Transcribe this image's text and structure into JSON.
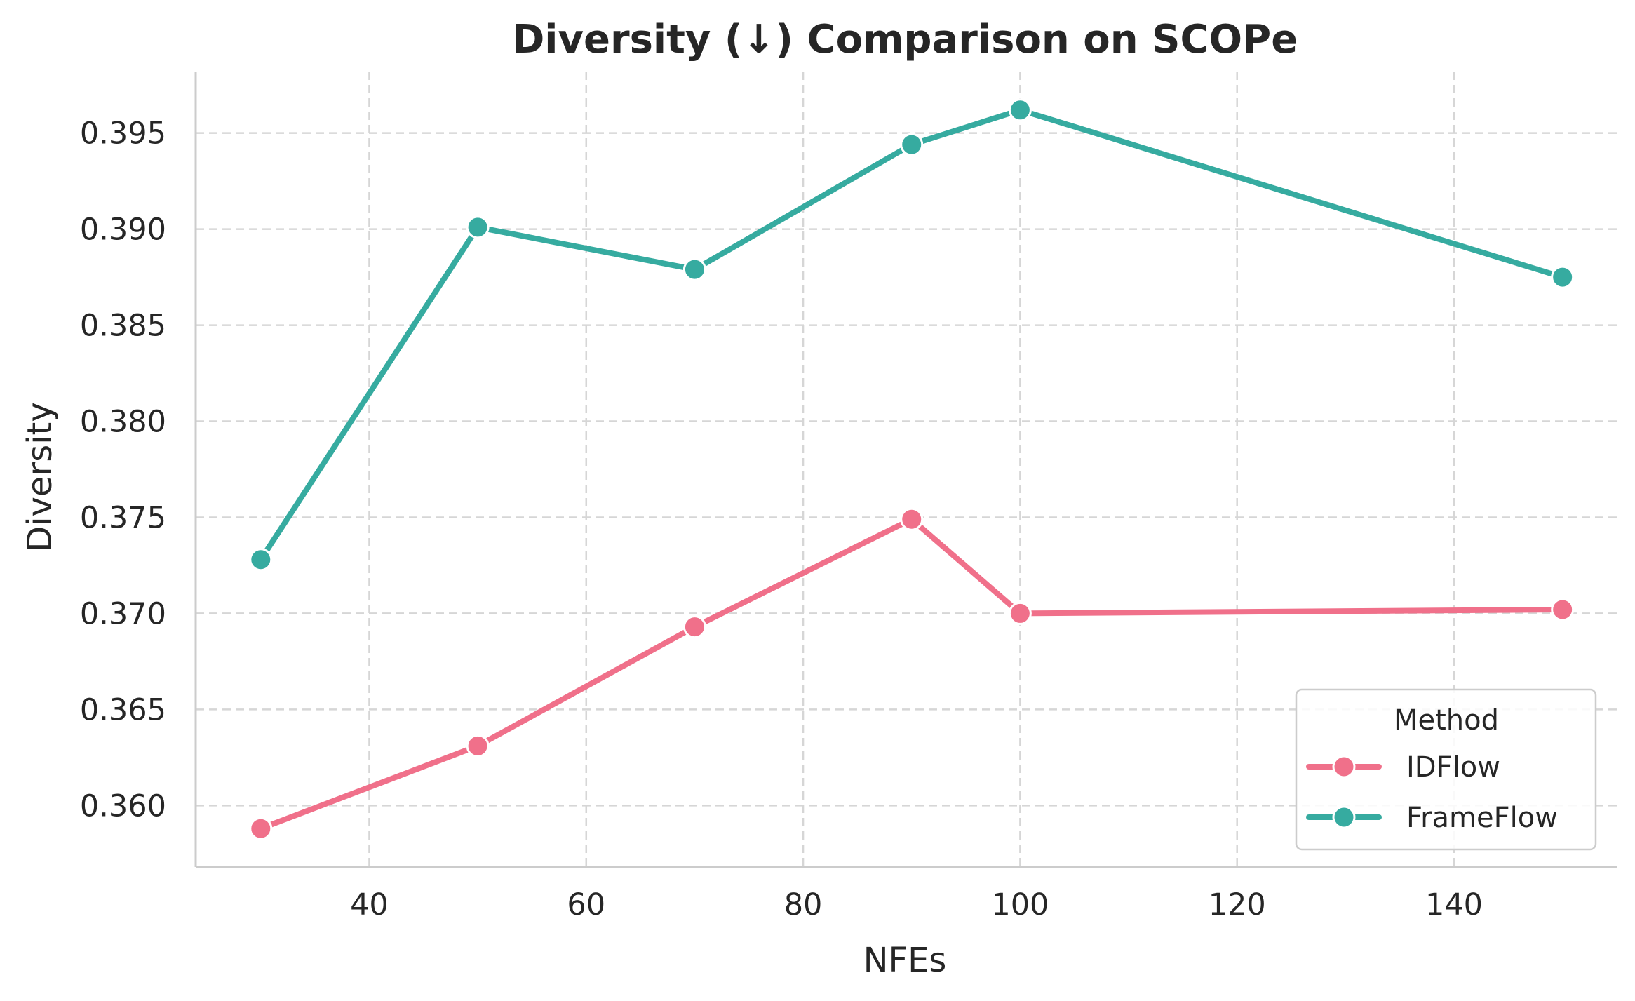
{
  "chart_data": {
    "type": "line",
    "title": "Diversity (↓) Comparison on SCOPe",
    "xlabel": "NFEs",
    "ylabel": "Diversity",
    "xlim": [
      24,
      155
    ],
    "ylim": [
      0.3568,
      0.3982
    ],
    "x_ticks": [
      40,
      60,
      80,
      100,
      120,
      140
    ],
    "x_tick_labels": [
      "40",
      "60",
      "80",
      "100",
      "120",
      "140"
    ],
    "y_ticks": [
      0.36,
      0.365,
      0.37,
      0.375,
      0.38,
      0.385,
      0.39,
      0.395
    ],
    "y_tick_labels": [
      "0.360",
      "0.365",
      "0.370",
      "0.375",
      "0.380",
      "0.385",
      "0.390",
      "0.395"
    ],
    "grid": true,
    "legend": {
      "title": "Method",
      "position": "lower-right"
    },
    "x": [
      30,
      50,
      70,
      90,
      100,
      150
    ],
    "series": [
      {
        "name": "IDFlow",
        "color": "#f0708a",
        "values": [
          0.3588,
          0.3631,
          0.3693,
          0.3749,
          0.37,
          0.3702
        ]
      },
      {
        "name": "FrameFlow",
        "color": "#36aba0",
        "values": [
          0.3728,
          0.3901,
          0.3879,
          0.3944,
          0.3962,
          0.3875
        ]
      }
    ]
  }
}
